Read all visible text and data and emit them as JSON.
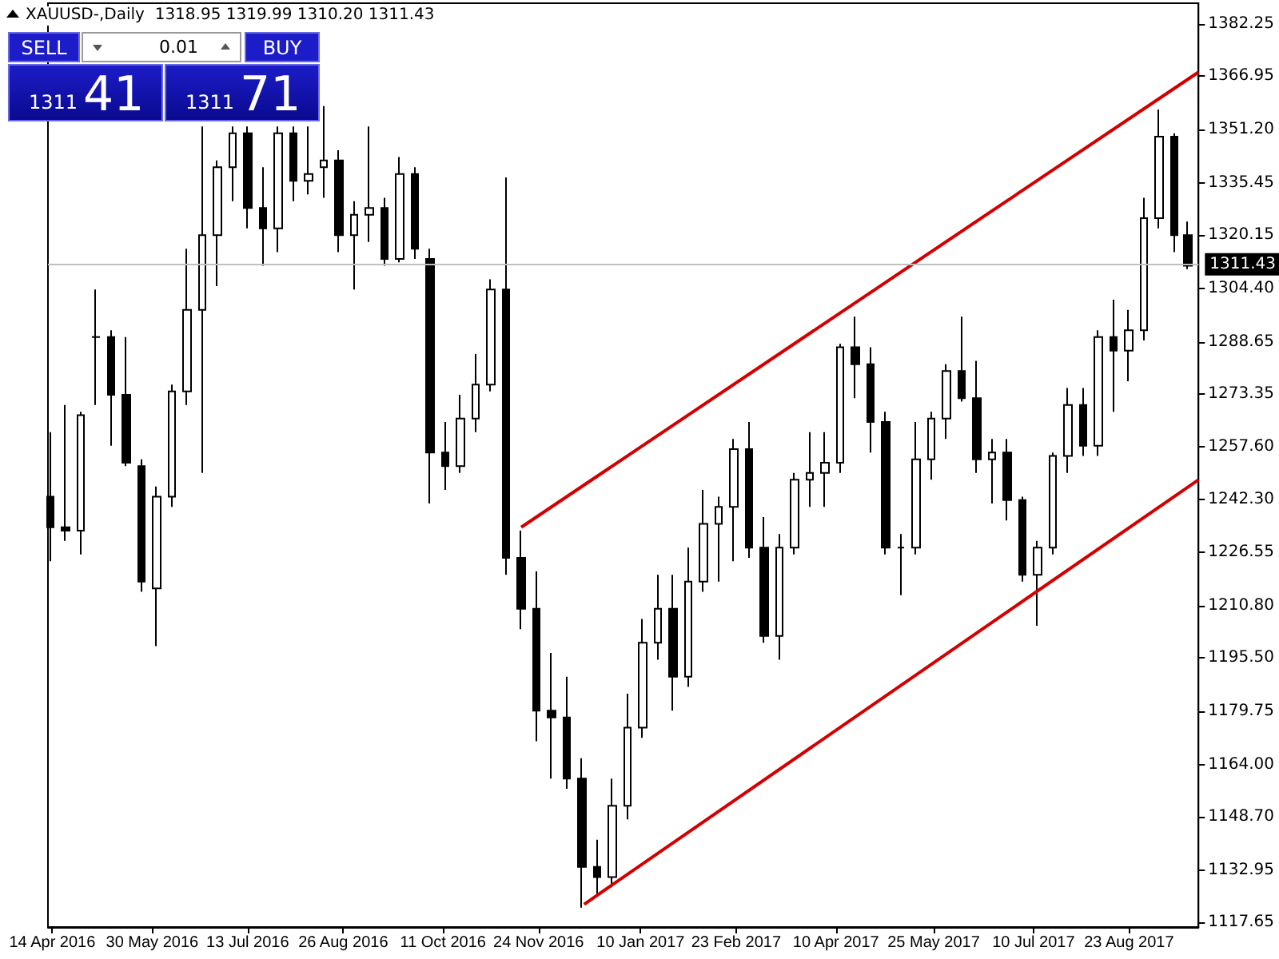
{
  "chart_data": {
    "type": "candlestick",
    "title": "XAUUSD-,Daily  1318.95 1319.99 1310.20 1311.43",
    "series": [
      {
        "color": "#000000",
        "x": [
          "2016-04-13",
          "2016-04-20",
          "2016-04-27",
          "2016-05-04",
          "2016-05-11",
          "2016-05-18",
          "2016-05-25",
          "2016-06-01",
          "2016-06-08",
          "2016-06-15",
          "2016-06-22",
          "2016-06-29",
          "2016-07-06",
          "2016-07-13",
          "2016-07-20",
          "2016-07-27",
          "2016-08-03",
          "2016-08-10",
          "2016-08-17",
          "2016-08-24",
          "2016-08-31",
          "2016-09-07",
          "2016-09-14",
          "2016-09-21",
          "2016-09-28",
          "2016-10-05",
          "2016-10-12",
          "2016-10-19",
          "2016-10-26",
          "2016-11-02",
          "2016-11-09",
          "2016-11-16",
          "2016-11-23",
          "2016-11-30",
          "2016-12-07",
          "2016-12-14",
          "2016-12-21",
          "2016-12-28",
          "2017-01-04",
          "2017-01-11",
          "2017-01-18",
          "2017-01-25",
          "2017-02-01",
          "2017-02-08",
          "2017-02-15",
          "2017-02-22",
          "2017-03-01",
          "2017-03-08",
          "2017-03-15",
          "2017-03-22",
          "2017-03-29",
          "2017-04-05",
          "2017-04-12",
          "2017-04-19",
          "2017-04-26",
          "2017-05-03",
          "2017-05-10",
          "2017-05-17",
          "2017-05-24",
          "2017-05-31",
          "2017-06-07",
          "2017-06-14",
          "2017-06-21",
          "2017-06-28",
          "2017-07-05",
          "2017-07-12",
          "2017-07-19",
          "2017-07-26",
          "2017-08-02",
          "2017-08-09",
          "2017-08-16",
          "2017-08-23",
          "2017-08-30",
          "2017-09-06",
          "2017-09-13",
          "2017-09-19"
        ],
        "ohlc": [
          [
            1243,
            1262,
            1224,
            1234
          ],
          [
            1234,
            1270,
            1230,
            1233
          ],
          [
            1233,
            1268,
            1226,
            1267
          ],
          [
            1290,
            1304,
            1270,
            1290
          ],
          [
            1290,
            1292,
            1258,
            1273
          ],
          [
            1273,
            1290,
            1252,
            1253
          ],
          [
            1252,
            1254,
            1215,
            1218
          ],
          [
            1216,
            1246,
            1199,
            1243
          ],
          [
            1243,
            1276,
            1240,
            1274
          ],
          [
            1274,
            1316,
            1270,
            1298
          ],
          [
            1298,
            1352,
            1250,
            1320
          ],
          [
            1320,
            1342,
            1305,
            1340
          ],
          [
            1340,
            1352,
            1330,
            1350
          ],
          [
            1350,
            1352,
            1322,
            1328
          ],
          [
            1328,
            1340,
            1311,
            1322
          ],
          [
            1322,
            1352,
            1315,
            1350
          ],
          [
            1350,
            1352,
            1330,
            1336
          ],
          [
            1336,
            1352,
            1332,
            1338
          ],
          [
            1340,
            1358,
            1331,
            1342
          ],
          [
            1342,
            1345,
            1315,
            1320
          ],
          [
            1320,
            1330,
            1304,
            1326
          ],
          [
            1326,
            1352,
            1318,
            1328
          ],
          [
            1328,
            1331,
            1311,
            1313
          ],
          [
            1313,
            1343,
            1312,
            1338
          ],
          [
            1338,
            1340,
            1313,
            1316
          ],
          [
            1313,
            1316,
            1241,
            1256
          ],
          [
            1256,
            1265,
            1245,
            1252
          ],
          [
            1252,
            1273,
            1250,
            1266
          ],
          [
            1266,
            1285,
            1262,
            1276
          ],
          [
            1276,
            1307,
            1274,
            1304
          ],
          [
            1304,
            1337,
            1220,
            1225
          ],
          [
            1225,
            1233,
            1204,
            1210
          ],
          [
            1210,
            1221,
            1171,
            1180
          ],
          [
            1180,
            1197,
            1160,
            1178
          ],
          [
            1178,
            1190,
            1157,
            1160
          ],
          [
            1160,
            1166,
            1122,
            1134
          ],
          [
            1134,
            1142,
            1126,
            1131
          ],
          [
            1131,
            1160,
            1128,
            1152
          ],
          [
            1152,
            1185,
            1148,
            1175
          ],
          [
            1175,
            1207,
            1172,
            1200
          ],
          [
            1200,
            1220,
            1195,
            1210
          ],
          [
            1210,
            1220,
            1180,
            1190
          ],
          [
            1190,
            1228,
            1187,
            1218
          ],
          [
            1218,
            1245,
            1215,
            1235
          ],
          [
            1235,
            1243,
            1218,
            1240
          ],
          [
            1240,
            1260,
            1224,
            1257
          ],
          [
            1257,
            1265,
            1225,
            1228
          ],
          [
            1228,
            1237,
            1200,
            1202
          ],
          [
            1202,
            1232,
            1195,
            1228
          ],
          [
            1228,
            1250,
            1226,
            1248
          ],
          [
            1248,
            1262,
            1240,
            1250
          ],
          [
            1250,
            1262,
            1240,
            1253
          ],
          [
            1253,
            1288,
            1250,
            1287
          ],
          [
            1287,
            1296,
            1272,
            1282
          ],
          [
            1282,
            1287,
            1256,
            1265
          ],
          [
            1265,
            1268,
            1226,
            1228
          ],
          [
            1228,
            1232,
            1214,
            1228
          ],
          [
            1228,
            1265,
            1226,
            1254
          ],
          [
            1254,
            1268,
            1248,
            1266
          ],
          [
            1266,
            1282,
            1260,
            1280
          ],
          [
            1280,
            1296,
            1271,
            1272
          ],
          [
            1272,
            1283,
            1250,
            1254
          ],
          [
            1254,
            1260,
            1241,
            1256
          ],
          [
            1256,
            1260,
            1236,
            1242
          ],
          [
            1242,
            1243,
            1218,
            1220
          ],
          [
            1220,
            1230,
            1205,
            1228
          ],
          [
            1228,
            1256,
            1226,
            1255
          ],
          [
            1255,
            1275,
            1250,
            1270
          ],
          [
            1270,
            1275,
            1255,
            1258
          ],
          [
            1258,
            1292,
            1255,
            1290
          ],
          [
            1290,
            1301,
            1268,
            1286
          ],
          [
            1286,
            1298,
            1277,
            1292
          ],
          [
            1292,
            1331,
            1289,
            1325
          ],
          [
            1325,
            1357,
            1322,
            1349
          ],
          [
            1349,
            1350,
            1315,
            1320
          ],
          [
            1320,
            1324,
            1310,
            1311
          ]
        ]
      },
      {
        "type": "line",
        "color": "#d40000",
        "x": [
          "2016-11-16",
          "2017-09-24"
        ],
        "values": [
          1234,
          1368
        ]
      },
      {
        "type": "line",
        "color": "#d40000",
        "x": [
          "2016-12-15",
          "2017-09-24"
        ],
        "values": [
          1123,
          1248
        ]
      }
    ],
    "xlim": [
      "2016-04-12",
      "2017-09-24"
    ],
    "xticks": [
      {
        "value": "2016-04-14",
        "label": "14 Apr 2016"
      },
      {
        "value": "2016-05-30",
        "label": "30 May 2016"
      },
      {
        "value": "2016-07-13",
        "label": "13 Jul 2016"
      },
      {
        "value": "2016-08-26",
        "label": "26 Aug 2016"
      },
      {
        "value": "2016-10-11",
        "label": "11 Oct 2016"
      },
      {
        "value": "2016-11-24",
        "label": "24 Nov 2016"
      },
      {
        "value": "2017-01-10",
        "label": "10 Jan 2017"
      },
      {
        "value": "2017-02-23",
        "label": "23 Feb 2017"
      },
      {
        "value": "2017-04-10",
        "label": "10 Apr 2017"
      },
      {
        "value": "2017-05-25",
        "label": "25 May 2017"
      },
      {
        "value": "2017-07-10",
        "label": "10 Jul 2017"
      },
      {
        "value": "2017-08-23",
        "label": "23 Aug 2017"
      }
    ],
    "ylim": [
      1116.3,
      1388.3
    ],
    "yticks": [
      1382.25,
      1366.95,
      {
        "value": 1351.2,
        "label": "1351.20"
      },
      1335.45,
      1320.15,
      {
        "value": 1304.4,
        "label": "1304.40"
      },
      1288.65,
      1273.35,
      {
        "value": 1257.6,
        "label": "1257.60"
      },
      {
        "value": 1242.3,
        "label": "1242.30"
      },
      1226.55,
      {
        "value": 1210.8,
        "label": "1210.80"
      },
      {
        "value": 1195.5,
        "label": "1195.50"
      },
      1179.75,
      {
        "value": 1164,
        "label": "1164.00"
      },
      {
        "value": 1148.7,
        "label": "1148.70"
      },
      1132.95,
      1117.65
    ],
    "ref_lines": [
      {
        "axis": "y",
        "value": 1311.43,
        "label": "1311.43",
        "color": "#c0c0c0"
      }
    ],
    "annotations": [
      "SELL",
      "0.01",
      "BUY",
      "1311",
      "41",
      "1311",
      "71"
    ],
    "grid": false,
    "marker": "none"
  }
}
